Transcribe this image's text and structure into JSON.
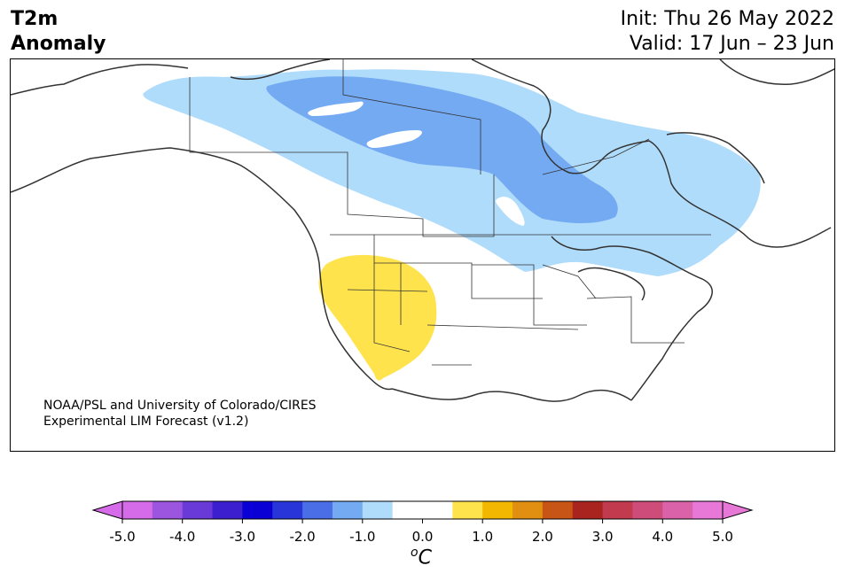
{
  "header": {
    "title_line1": "T2m",
    "title_line2": "Anomaly",
    "init": "Init: Thu 26 May 2022",
    "valid": "Valid: 17 Jun – 23 Jun"
  },
  "credit": {
    "line1": "NOAA/PSL and University of Colorado/CIRES",
    "line2": "Experimental LIM Forecast (v1.2)"
  },
  "colorbar": {
    "unit_base": "C",
    "unit_sup": "o",
    "ticks": [
      "-5.0",
      "-4.0",
      "-3.0",
      "-2.0",
      "-1.0",
      "0.0",
      "1.0",
      "2.0",
      "3.0",
      "4.0",
      "5.0"
    ],
    "colors": [
      "#d56be8",
      "#9c55de",
      "#6a3ad8",
      "#3c1fcf",
      "#0a00d6",
      "#2836d9",
      "#4a6ee6",
      "#74aaf2",
      "#b0dcfb",
      "#ffffff",
      "#ffffff",
      "#ffe34c",
      "#f2b700",
      "#e08f10",
      "#c85515",
      "#a9231f",
      "#c23a4e",
      "#cd4c79",
      "#da62a8",
      "#e878d8"
    ]
  },
  "map": {
    "anomaly_colors": {
      "light_blue": "#b0dcfb",
      "mid_blue": "#74aaf2",
      "yellow": "#ffe34c"
    }
  }
}
